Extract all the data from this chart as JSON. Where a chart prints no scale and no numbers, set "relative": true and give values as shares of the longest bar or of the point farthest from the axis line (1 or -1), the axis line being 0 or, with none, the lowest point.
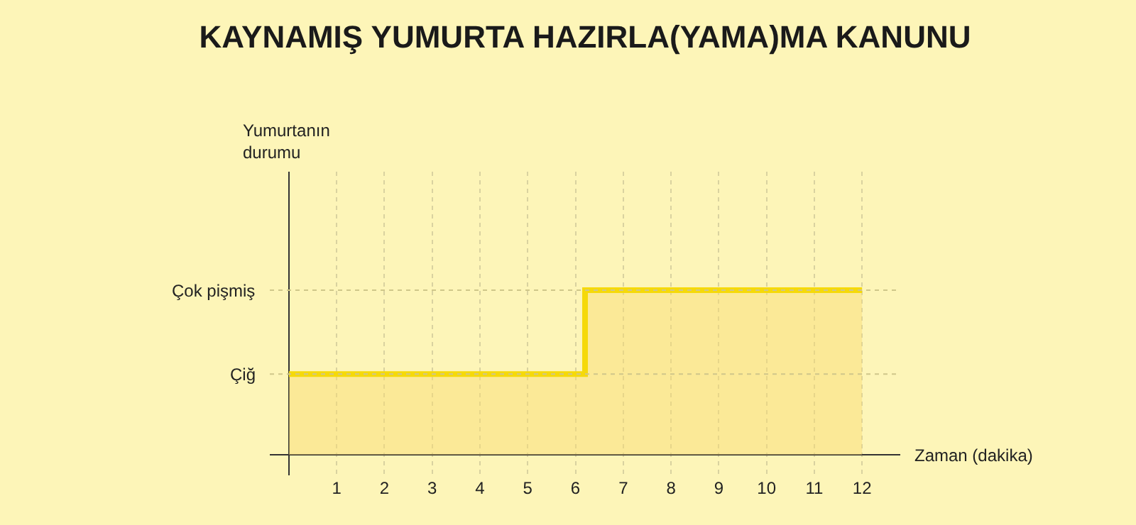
{
  "chart_data": {
    "type": "area",
    "title": "KAYNAMIŞ YUMURTA HAZIRLA(YAMA)MA KANUNU",
    "xlabel": "Zaman (dakika)",
    "x": [
      0,
      6.2,
      6.2,
      12
    ],
    "series": [
      {
        "color": "#f5d90a",
        "values": [
          0.49,
          0.49,
          1,
          1
        ]
      }
    ],
    "relative": true,
    "annotations": [
      "Yumurtanın\ndurumu"
    ],
    "ref_lines": [
      {
        "axis": "y",
        "value": 0.49,
        "label": "Çiğ"
      },
      {
        "axis": "y",
        "value": 1,
        "label": "Çok pişmiş"
      }
    ],
    "xlim": [
      -0.4,
      12.8
    ],
    "xticks": [
      1,
      2,
      3,
      4,
      5,
      6,
      7,
      8,
      9,
      10,
      11,
      12
    ],
    "grid": "x"
  }
}
